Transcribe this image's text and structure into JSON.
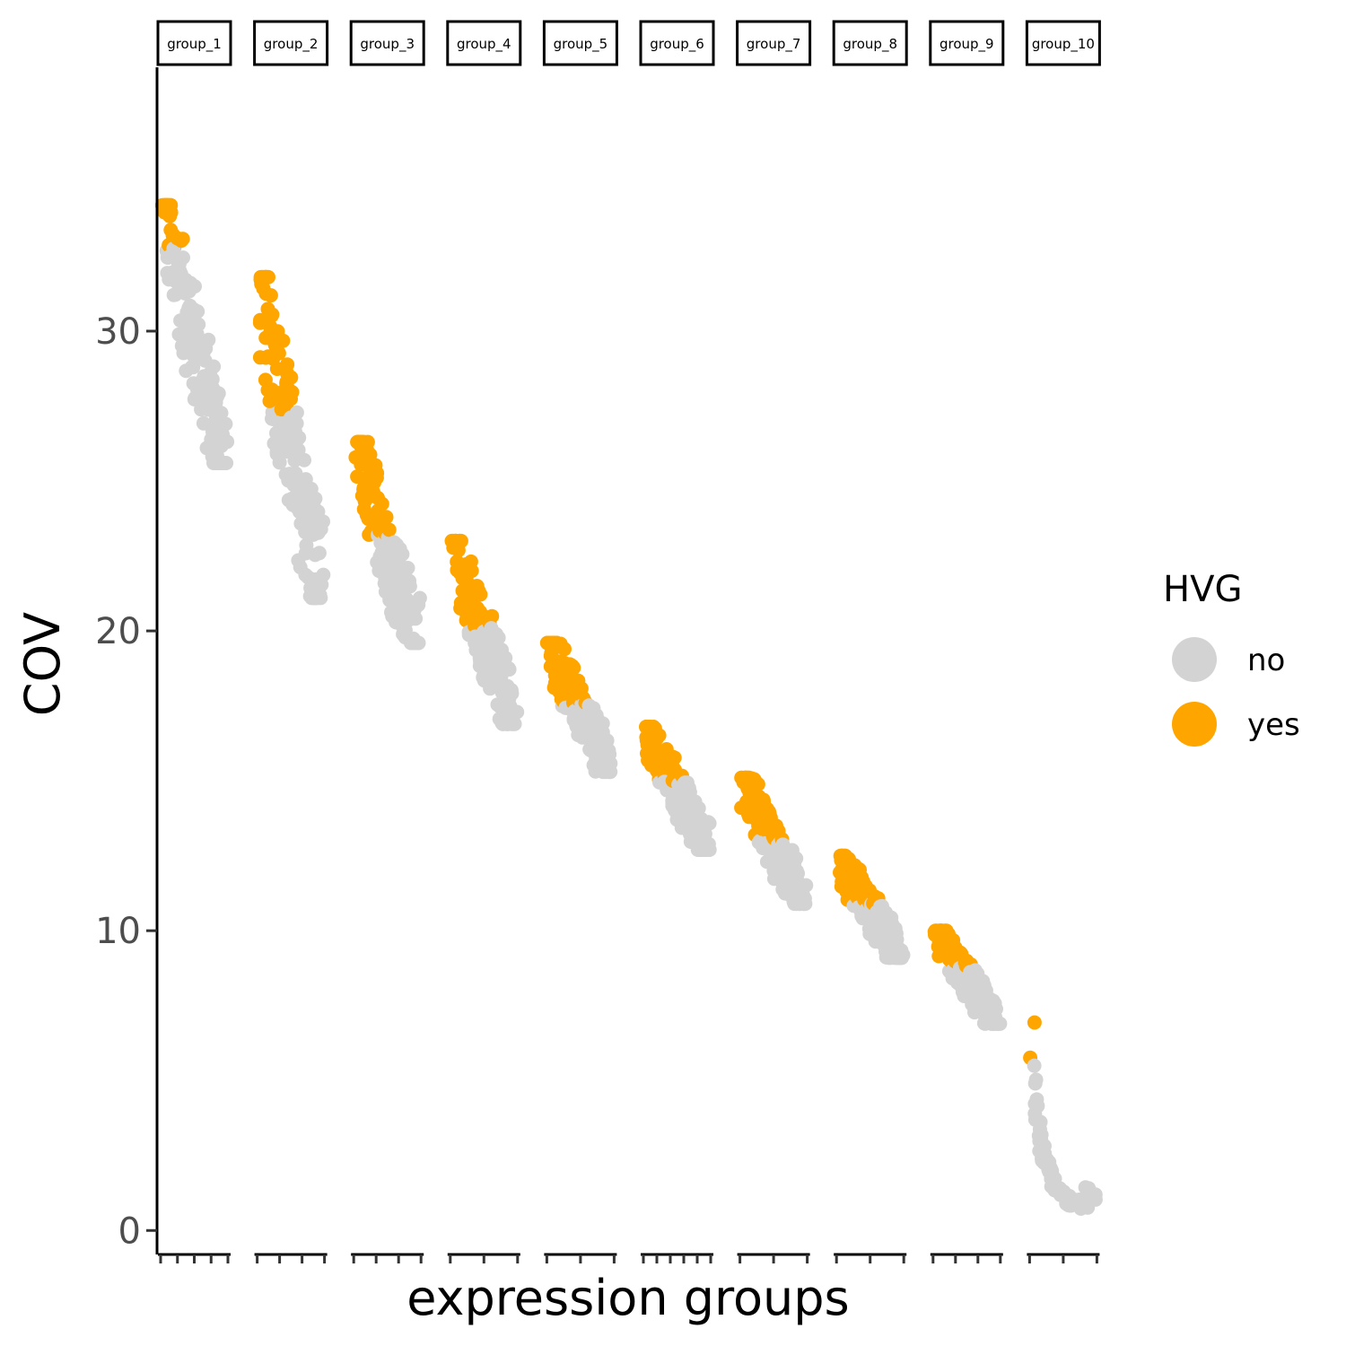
{
  "chart_data": {
    "type": "scatter",
    "facet_by": "expression groups",
    "xlabel": "expression groups",
    "ylabel": "COV",
    "ylim": [
      -0.8,
      38.8
    ],
    "y_ticks": [
      0,
      10,
      20,
      30
    ],
    "grid": false,
    "legend": {
      "title": "HVG",
      "position": "right",
      "entries": [
        {
          "label": "no",
          "color": "#d3d3d3"
        },
        {
          "label": "yes",
          "color": "#ffa500"
        }
      ]
    },
    "colors": {
      "no": "#d3d3d3",
      "yes": "#ffa500"
    },
    "groups": [
      {
        "label": "group_1",
        "y_max": 34.2,
        "hvg_threshold": 32.8,
        "y_min": 25.6,
        "ticks": 5
      },
      {
        "label": "group_2",
        "y_max": 31.8,
        "hvg_threshold": 27.3,
        "y_min": 21.1,
        "ticks": 4
      },
      {
        "label": "group_3",
        "y_max": 26.3,
        "hvg_threshold": 23.2,
        "y_min": 19.6,
        "ticks": 4
      },
      {
        "label": "group_4",
        "y_max": 23.0,
        "hvg_threshold": 20.1,
        "y_min": 16.9,
        "ticks": 3
      },
      {
        "label": "group_5",
        "y_max": 19.6,
        "hvg_threshold": 17.6,
        "y_min": 15.3,
        "ticks": 3
      },
      {
        "label": "group_6",
        "y_max": 16.8,
        "hvg_threshold": 15.0,
        "y_min": 12.7,
        "ticks": 6
      },
      {
        "label": "group_7",
        "y_max": 15.1,
        "hvg_threshold": 13.0,
        "y_min": 10.9,
        "ticks": 3
      },
      {
        "label": "group_8",
        "y_max": 12.5,
        "hvg_threshold": 10.9,
        "y_min": 9.1,
        "ticks": 3
      },
      {
        "label": "group_9",
        "y_max": 10.0,
        "hvg_threshold": 8.8,
        "y_min": 6.9,
        "ticks": 4
      },
      {
        "label": "group_10",
        "y_max": 7.2,
        "hvg_threshold": 5.6,
        "y_min": 1.0,
        "ticks": 3
      }
    ]
  }
}
